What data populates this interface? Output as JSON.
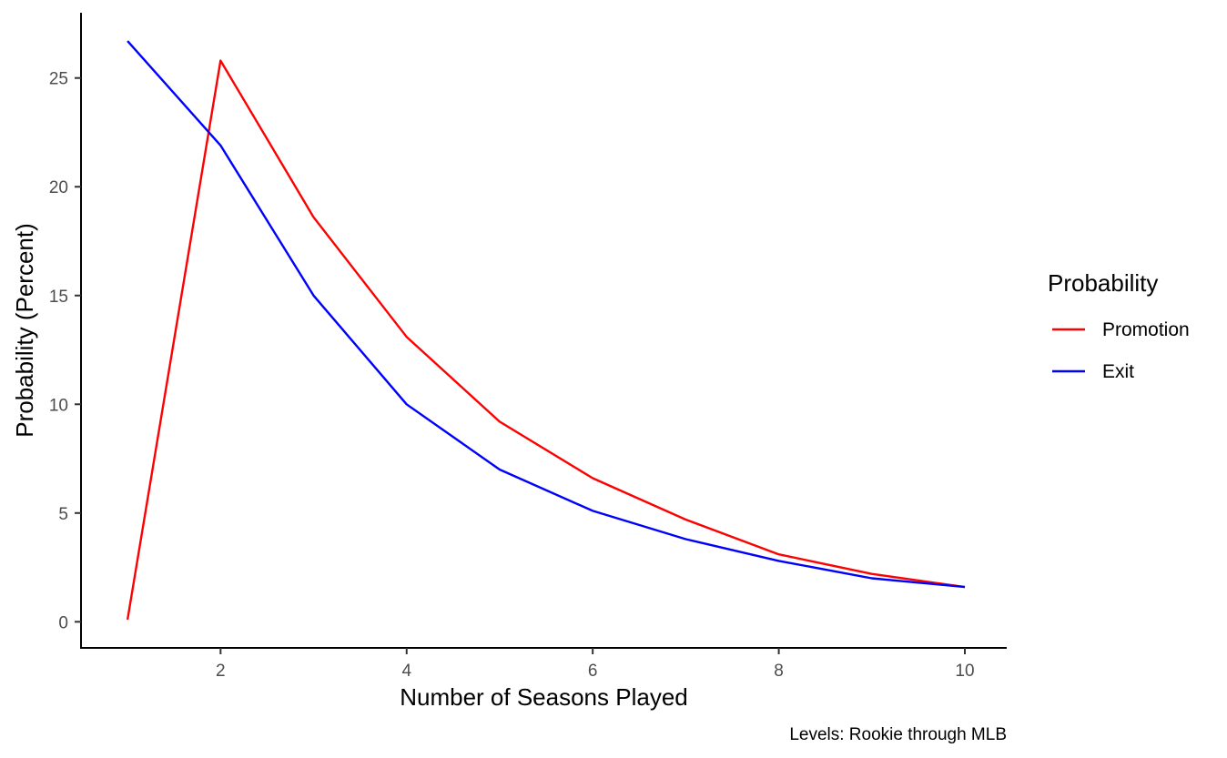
{
  "chart_data": {
    "type": "line",
    "xlabel": "Number of Seasons Played",
    "ylabel": "Probability (Percent)",
    "caption": "Levels: Rookie through MLB",
    "xlim": [
      0.5,
      10.45
    ],
    "ylim": [
      -1.2,
      28.0
    ],
    "xticks": [
      2,
      4,
      6,
      8,
      10
    ],
    "yticks": [
      0,
      5,
      10,
      15,
      20,
      25
    ],
    "grid": false,
    "legend": {
      "title": "Probability",
      "position": "right"
    },
    "x": [
      1,
      2,
      3,
      4,
      5,
      6,
      7,
      8,
      9,
      10
    ],
    "series": [
      {
        "name": "Promotion",
        "color": "#ff0000",
        "values": [
          0.1,
          25.8,
          18.6,
          13.1,
          9.2,
          6.6,
          4.7,
          3.1,
          2.2,
          1.6
        ]
      },
      {
        "name": "Exit",
        "color": "#0000ff",
        "values": [
          26.7,
          21.9,
          15.0,
          10.0,
          7.0,
          5.1,
          3.8,
          2.8,
          2.0,
          1.6
        ]
      }
    ]
  }
}
